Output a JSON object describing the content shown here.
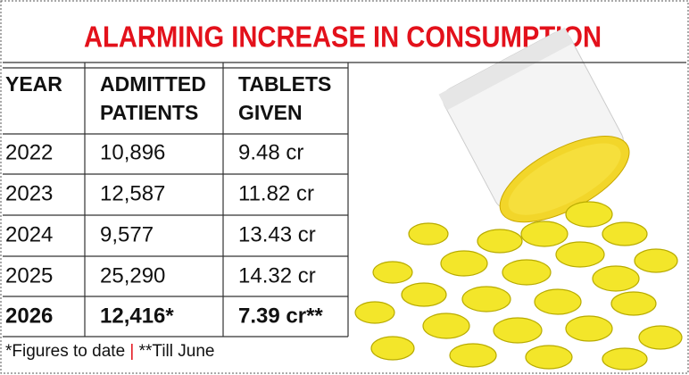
{
  "title": "ALARMING INCREASE IN CONSUMPTION",
  "table": {
    "headers": [
      [
        "YEAR"
      ],
      [
        "ADMITTED",
        "PATIENTS"
      ],
      [
        "TABLETS",
        "GIVEN"
      ]
    ],
    "rows": [
      [
        "2022",
        "10,896",
        "9.48 cr"
      ],
      [
        "2023",
        "12,587",
        "11.82 cr"
      ],
      [
        "2024",
        "9,577",
        "13.43 cr"
      ],
      [
        "2025",
        "25,290",
        "14.32 cr"
      ],
      [
        "2026",
        "12,416*",
        "7.39 cr**"
      ]
    ]
  },
  "footnote": {
    "note1": "*Figures to date",
    "separator": "|",
    "note2": "**Till June"
  }
}
